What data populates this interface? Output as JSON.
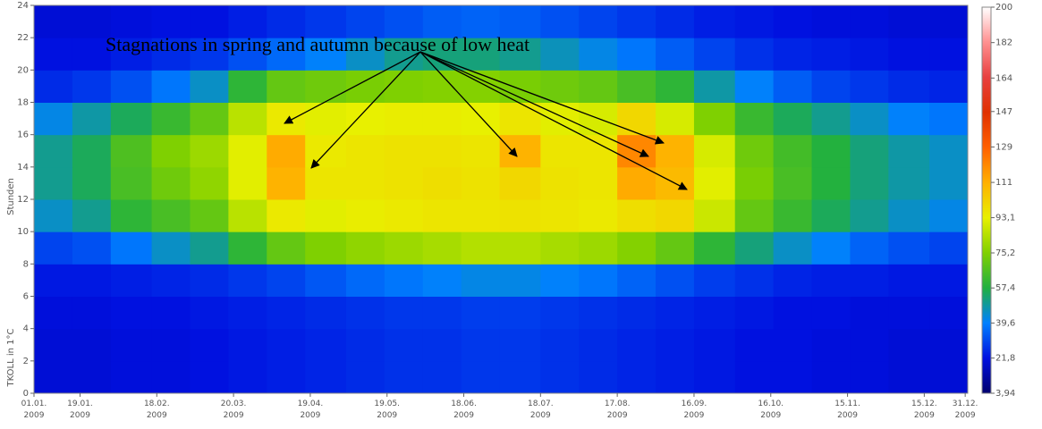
{
  "chart_data": {
    "type": "heatmap",
    "annotation": "Stagnations in spring and autumn because of low heat",
    "ylabel": "Stunden",
    "colorbar_label": "TKOLL in 1°C",
    "xlim": [
      0,
      365
    ],
    "xticks": [
      {
        "value": 0,
        "label": "01.01.\n2009"
      },
      {
        "value": 18,
        "label": "19.01.\n2009"
      },
      {
        "value": 48,
        "label": "18.02.\n2009"
      },
      {
        "value": 78,
        "label": "20.03.\n2009"
      },
      {
        "value": 108,
        "label": "19.04.\n2009"
      },
      {
        "value": 138,
        "label": "19.05.\n2009"
      },
      {
        "value": 168,
        "label": "18.06.\n2009"
      },
      {
        "value": 198,
        "label": "18.07.\n2009"
      },
      {
        "value": 228,
        "label": "17.08.\n2009"
      },
      {
        "value": 258,
        "label": "16.09.\n2009"
      },
      {
        "value": 288,
        "label": "16.10.\n2009"
      },
      {
        "value": 318,
        "label": "15.11.\n2009"
      },
      {
        "value": 348,
        "label": "15.12.\n2009"
      },
      {
        "value": 364,
        "label": "31.12.\n2009"
      }
    ],
    "ylim": [
      0,
      24
    ],
    "yticks": [
      0,
      2,
      4,
      6,
      8,
      10,
      12,
      14,
      16,
      18,
      20,
      22,
      24
    ],
    "zlim": [
      3.94,
      200
    ],
    "zticks": [
      {
        "value": 3.94,
        "label": "3,94"
      },
      {
        "value": 21.8,
        "label": "21,8"
      },
      {
        "value": 39.6,
        "label": "39,6"
      },
      {
        "value": 57.4,
        "label": "57,4"
      },
      {
        "value": 75.2,
        "label": "75,2"
      },
      {
        "value": 93.1,
        "label": "93,1"
      },
      111,
      129,
      147,
      164,
      182,
      200
    ],
    "colorscale": [
      "#00006e",
      "#0010e0",
      "#0080ff",
      "#20b040",
      "#80d000",
      "#e8f000",
      "#ffb000",
      "#ff6000",
      "#e03000",
      "#e84040",
      "#ff9090",
      "#ffffff"
    ],
    "x_bins": [
      0,
      15,
      30,
      46,
      61,
      76,
      91,
      106,
      122,
      137,
      152,
      167,
      182,
      198,
      213,
      228,
      243,
      258,
      274,
      289,
      304,
      319,
      334,
      350,
      365
    ],
    "y_bins": [
      0,
      2,
      4,
      6,
      8,
      10,
      12,
      14,
      16,
      18,
      20,
      22,
      24
    ],
    "z": [
      [
        20,
        20,
        21,
        21,
        22,
        23,
        24,
        25,
        26,
        27,
        27,
        28,
        28,
        27,
        26,
        25,
        24,
        23,
        22,
        22,
        21,
        21,
        20,
        20
      ],
      [
        20,
        20,
        21,
        21,
        22,
        23,
        24,
        25,
        26,
        27,
        27,
        28,
        28,
        27,
        26,
        25,
        24,
        23,
        22,
        22,
        21,
        21,
        20,
        20
      ],
      [
        21,
        21,
        22,
        22,
        23,
        24,
        25,
        26,
        27,
        28,
        28,
        29,
        29,
        28,
        27,
        26,
        25,
        24,
        23,
        22,
        22,
        21,
        21,
        21
      ],
      [
        23,
        23,
        24,
        25,
        26,
        28,
        30,
        33,
        36,
        38,
        40,
        42,
        42,
        40,
        38,
        35,
        32,
        29,
        27,
        25,
        24,
        24,
        23,
        23
      ],
      [
        30,
        32,
        38,
        45,
        50,
        60,
        70,
        75,
        78,
        80,
        82,
        84,
        84,
        82,
        80,
        76,
        70,
        60,
        52,
        45,
        40,
        35,
        32,
        30
      ],
      [
        45,
        50,
        60,
        65,
        70,
        85,
        95,
        92,
        94,
        95,
        96,
        96,
        97,
        96,
        95,
        98,
        100,
        88,
        70,
        62,
        55,
        50,
        45,
        42
      ],
      [
        50,
        55,
        65,
        72,
        78,
        92,
        110,
        96,
        96,
        97,
        98,
        97,
        100,
        97,
        96,
        112,
        108,
        92,
        74,
        65,
        58,
        52,
        48,
        45
      ],
      [
        50,
        55,
        66,
        75,
        80,
        92,
        112,
        95,
        96,
        97,
        97,
        96,
        110,
        96,
        96,
        120,
        110,
        90,
        72,
        64,
        58,
        52,
        48,
        45
      ],
      [
        42,
        48,
        55,
        62,
        70,
        85,
        95,
        92,
        93,
        94,
        94,
        93,
        96,
        92,
        90,
        100,
        90,
        75,
        62,
        55,
        50,
        45,
        40,
        38
      ],
      [
        26,
        28,
        32,
        38,
        45,
        60,
        70,
        72,
        74,
        75,
        76,
        76,
        74,
        72,
        70,
        65,
        60,
        48,
        40,
        34,
        30,
        28,
        26,
        25
      ],
      [
        22,
        22,
        24,
        26,
        28,
        32,
        36,
        40,
        45,
        50,
        52,
        52,
        50,
        46,
        42,
        38,
        34,
        30,
        27,
        25,
        24,
        23,
        22,
        22
      ],
      [
        20,
        20,
        21,
        22,
        22,
        24,
        26,
        28,
        30,
        32,
        34,
        35,
        34,
        32,
        30,
        28,
        26,
        24,
        23,
        22,
        21,
        21,
        20,
        20
      ]
    ]
  }
}
